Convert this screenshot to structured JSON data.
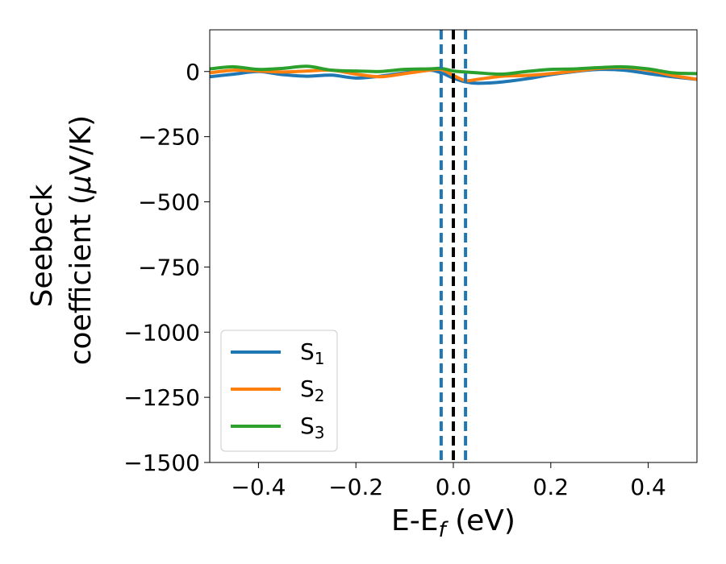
{
  "chart_data": {
    "type": "line",
    "xlabel": {
      "main": "E-E",
      "sub": "f",
      "unit": " (eV)"
    },
    "ylabel": {
      "line1": "Seebeck",
      "line2_prefix": "coefficient  (",
      "line2_mu": "μ",
      "line2_suffix": "V/K)"
    },
    "xlim": [
      -0.5,
      0.5
    ],
    "ylim": [
      -1500,
      160
    ],
    "x_ticks": [
      -0.4,
      -0.2,
      0.0,
      0.2,
      0.4
    ],
    "x_tick_labels": [
      "−0.4",
      "−0.2",
      "0.0",
      "0.2",
      "0.4"
    ],
    "y_ticks": [
      0,
      -250,
      -500,
      -750,
      -1000,
      -1250,
      -1500
    ],
    "y_tick_labels": [
      "0",
      "−250",
      "−500",
      "−750",
      "−1000",
      "−1250",
      "−1500"
    ],
    "grid": false,
    "legend_position": "lower-left",
    "series": [
      {
        "name": "S1",
        "label_main": "S",
        "label_sub": "1",
        "color": "#1f77b4",
        "x": [
          -0.5,
          -0.45,
          -0.4,
          -0.35,
          -0.3,
          -0.25,
          -0.2,
          -0.15,
          -0.1,
          -0.05,
          -0.025,
          0.0,
          0.025,
          0.05,
          0.1,
          0.15,
          0.2,
          0.25,
          0.3,
          0.35,
          0.4,
          0.45,
          0.5
        ],
        "y": [
          -20,
          -10,
          0,
          -12,
          -18,
          -14,
          -25,
          -18,
          -5,
          5,
          -5,
          -25,
          -40,
          -45,
          -40,
          -28,
          -12,
          0,
          8,
          5,
          -8,
          -20,
          -30
        ]
      },
      {
        "name": "S2",
        "label_main": "S",
        "label_sub": "2",
        "color": "#ff7f0e",
        "x": [
          -0.5,
          -0.45,
          -0.4,
          -0.35,
          -0.3,
          -0.25,
          -0.2,
          -0.15,
          -0.1,
          -0.05,
          -0.025,
          0.0,
          0.025,
          0.05,
          0.1,
          0.15,
          0.2,
          0.25,
          0.3,
          0.35,
          0.4,
          0.45,
          0.5
        ],
        "y": [
          -5,
          5,
          2,
          -2,
          2,
          5,
          -10,
          -20,
          -8,
          5,
          8,
          -15,
          -35,
          -30,
          -18,
          -15,
          -8,
          2,
          12,
          15,
          5,
          -15,
          -30
        ]
      },
      {
        "name": "S3",
        "label_main": "S",
        "label_sub": "3",
        "color": "#2ca02c",
        "x": [
          -0.5,
          -0.45,
          -0.4,
          -0.35,
          -0.3,
          -0.25,
          -0.2,
          -0.15,
          -0.1,
          -0.05,
          -0.025,
          0.0,
          0.025,
          0.05,
          0.1,
          0.15,
          0.2,
          0.25,
          0.3,
          0.35,
          0.4,
          0.45,
          0.5
        ],
        "y": [
          10,
          18,
          8,
          12,
          20,
          5,
          2,
          0,
          8,
          10,
          12,
          2,
          -2,
          -5,
          -10,
          0,
          8,
          10,
          15,
          18,
          10,
          -5,
          -8
        ]
      }
    ],
    "vlines": [
      {
        "x": -0.025,
        "color": "#1f77b4",
        "style": "dashed"
      },
      {
        "x": 0.0,
        "color": "#000000",
        "style": "dashed"
      },
      {
        "x": 0.025,
        "color": "#1f77b4",
        "style": "dashed"
      }
    ]
  }
}
